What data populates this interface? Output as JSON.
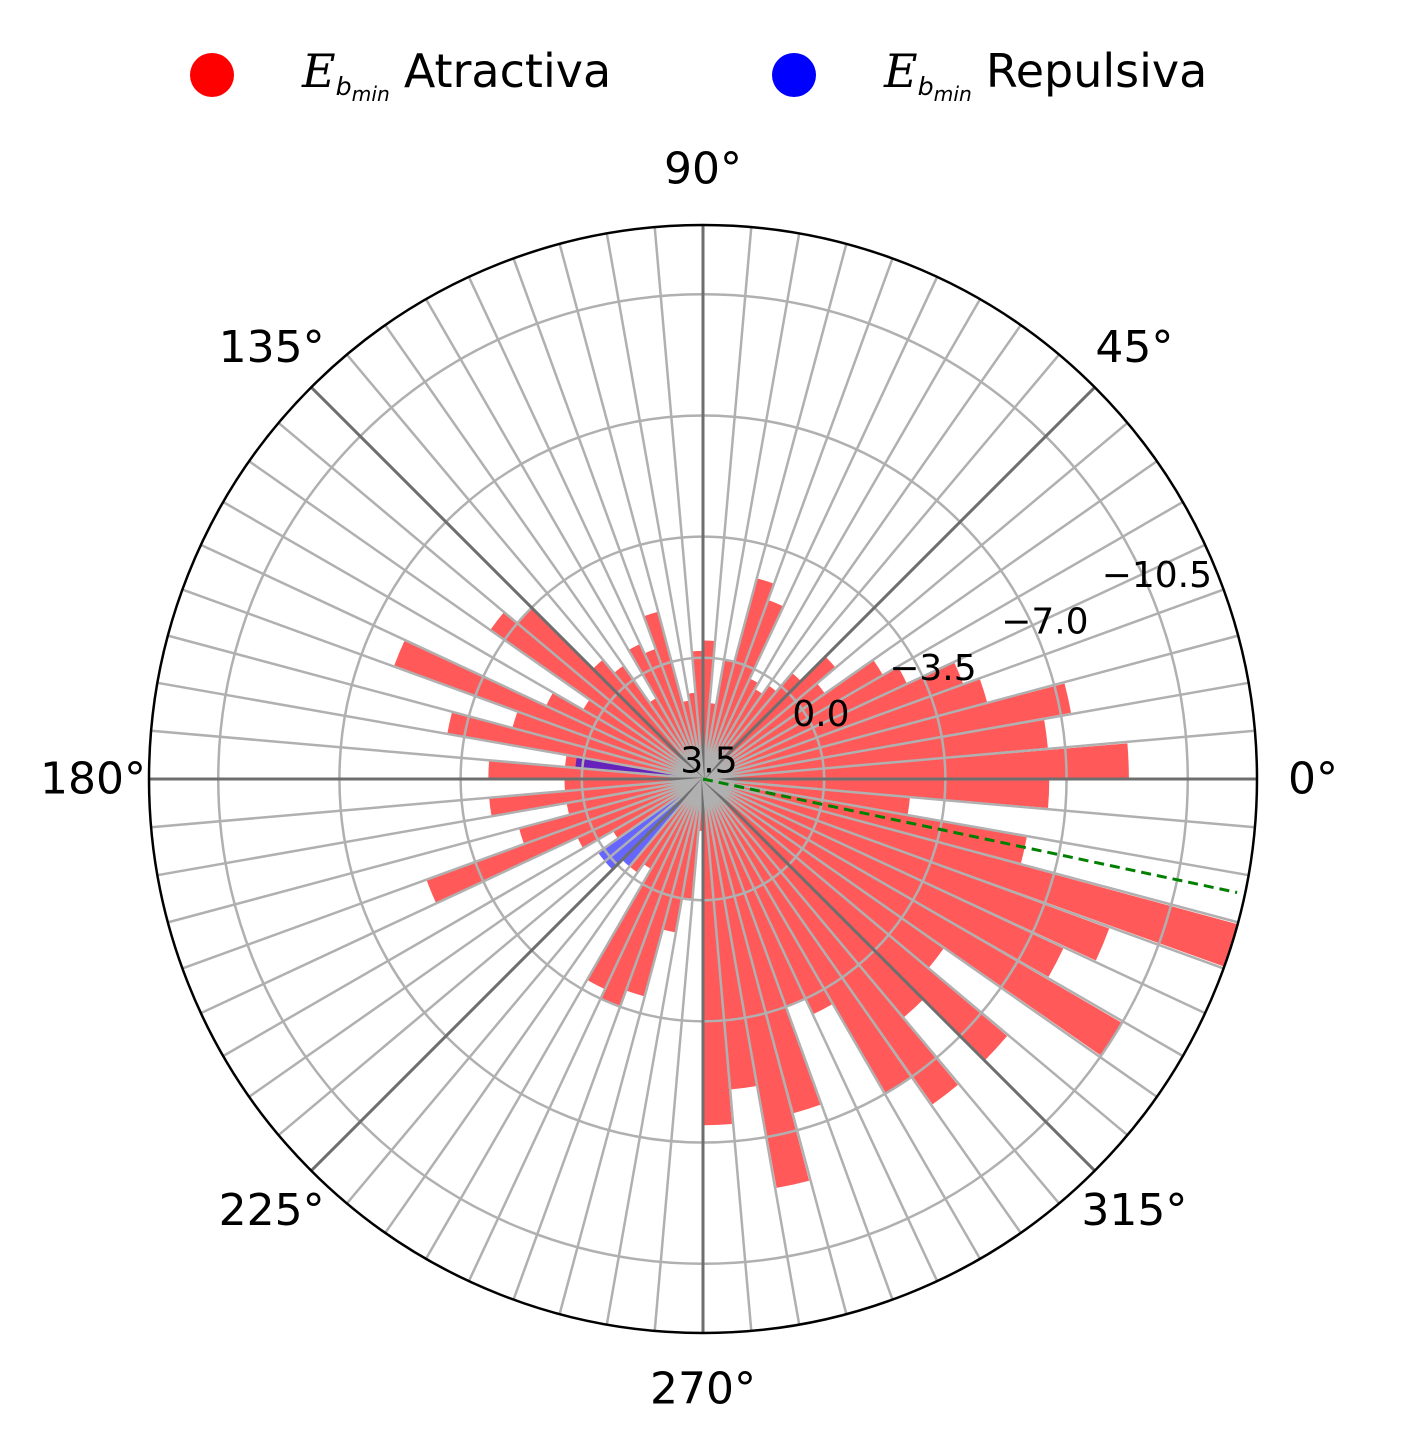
{
  "chart_data": {
    "type": "polar_bar",
    "radial_axis": {
      "ticks": [
        3.5,
        0.0,
        -3.5,
        -7.0,
        -10.5
      ],
      "tick_labels": [
        "3.5",
        "0.0",
        "−3.5",
        "−7.0",
        "−10.5"
      ],
      "range": [
        3.5,
        -12.5
      ],
      "direction": "inverted (center is most positive)"
    },
    "angular_axis": {
      "tick_labels": [
        "0°",
        "45°",
        "90°",
        "135°",
        "180°",
        "225°",
        "270°",
        "315°"
      ],
      "bin_width_deg": 5
    },
    "grid": true,
    "legend_position": "top",
    "reference_line_angle_deg": -12,
    "series": [
      {
        "name": "Atractiva",
        "color": "#ff0000",
        "bars": [
          {
            "theta": 2.5,
            "value": -8.8
          },
          {
            "theta": 7.5,
            "value": -6.5
          },
          {
            "theta": 12.5,
            "value": -7.3
          },
          {
            "theta": 17.5,
            "value": -5.0
          },
          {
            "theta": 22.5,
            "value": -4.5
          },
          {
            "theta": 27.5,
            "value": -3.0
          },
          {
            "theta": 32.5,
            "value": -2.5
          },
          {
            "theta": 37.5,
            "value": -0.8
          },
          {
            "theta": 42.5,
            "value": -1.5
          },
          {
            "theta": 47.5,
            "value": -0.5
          },
          {
            "theta": 52.5,
            "value": 0.2
          },
          {
            "theta": 57.5,
            "value": 0.5
          },
          {
            "theta": 62.5,
            "value": 0.3
          },
          {
            "theta": 67.5,
            "value": -2.0
          },
          {
            "theta": 72.5,
            "value": -2.5
          },
          {
            "theta": 77.5,
            "value": 0.0
          },
          {
            "theta": 82.5,
            "value": 1.3
          },
          {
            "theta": 87.5,
            "value": -0.5
          },
          {
            "theta": 92.5,
            "value": -0.2
          },
          {
            "theta": 97.5,
            "value": 1.0
          },
          {
            "theta": 102.5,
            "value": 1.2
          },
          {
            "theta": 107.5,
            "value": -1.5
          },
          {
            "theta": 112.5,
            "value": -0.5
          },
          {
            "theta": 117.5,
            "value": -0.8
          },
          {
            "theta": 122.5,
            "value": 0.8
          },
          {
            "theta": 127.5,
            "value": -0.5
          },
          {
            "theta": 132.5,
            "value": -1.0
          },
          {
            "theta": 137.5,
            "value": -3.5
          },
          {
            "theta": 142.5,
            "value": -4.0
          },
          {
            "theta": 147.5,
            "value": -0.5
          },
          {
            "theta": 152.5,
            "value": -1.5
          },
          {
            "theta": 157.5,
            "value": -6.0
          },
          {
            "theta": 162.5,
            "value": -2.2
          },
          {
            "theta": 167.5,
            "value": -4.0
          },
          {
            "theta": 172.5,
            "value": -0.5
          },
          {
            "theta": 177.5,
            "value": -2.7
          },
          {
            "theta": 182.5,
            "value": -0.5
          },
          {
            "theta": 187.5,
            "value": -2.7
          },
          {
            "theta": 192.5,
            "value": -0.5
          },
          {
            "theta": 197.5,
            "value": -2.0
          },
          {
            "theta": 202.5,
            "value": -5.0
          },
          {
            "theta": 207.5,
            "value": -0.5
          },
          {
            "theta": 212.5,
            "value": 0.5
          },
          {
            "theta": 232.5,
            "value": 0.2
          },
          {
            "theta": 237.5,
            "value": 0.5
          },
          {
            "theta": 242.5,
            "value": -3.2
          },
          {
            "theta": 247.5,
            "value": -3.5
          },
          {
            "theta": 252.5,
            "value": -3.0
          },
          {
            "theta": 257.5,
            "value": -1.0
          },
          {
            "theta": 262.5,
            "value": 0.0
          },
          {
            "theta": 267.5,
            "value": 2.0
          },
          {
            "theta": 272.5,
            "value": -6.5
          },
          {
            "theta": 277.5,
            "value": -5.5
          },
          {
            "theta": 282.5,
            "value": -8.5
          },
          {
            "theta": 287.5,
            "value": -6.5
          },
          {
            "theta": 292.5,
            "value": -3.5
          },
          {
            "theta": 297.5,
            "value": -4.0
          },
          {
            "theta": 302.5,
            "value": -7.0
          },
          {
            "theta": 307.5,
            "value": -8.0
          },
          {
            "theta": 312.5,
            "value": -5.5
          },
          {
            "theta": 317.5,
            "value": -8.0
          },
          {
            "theta": 322.5,
            "value": -5.0
          },
          {
            "theta": 327.5,
            "value": -10.5
          },
          {
            "theta": 332.5,
            "value": -8.0
          },
          {
            "theta": 337.5,
            "value": -9.0
          },
          {
            "theta": 342.5,
            "value": -12.5
          },
          {
            "theta": 347.5,
            "value": -6.0
          },
          {
            "theta": 352.5,
            "value": -2.5
          },
          {
            "theta": 357.5,
            "value": -6.5
          }
        ]
      },
      {
        "name": "Repulsiva",
        "color": "#0000ff",
        "bars": [
          {
            "theta": 172.5,
            "value": -0.2
          },
          {
            "theta": 217.5,
            "value": -0.2
          },
          {
            "theta": 222.5,
            "value": -0.2
          },
          {
            "theta": 227.5,
            "value": 0.2
          }
        ]
      }
    ]
  },
  "legend": {
    "items": [
      {
        "symbol": "E",
        "sub": "b",
        "subsub": "min",
        "label": "Atractiva",
        "color": "#ff0000"
      },
      {
        "symbol": "E",
        "sub": "b",
        "subsub": "min",
        "label": "Repulsiva",
        "color": "#0000ff"
      }
    ]
  }
}
